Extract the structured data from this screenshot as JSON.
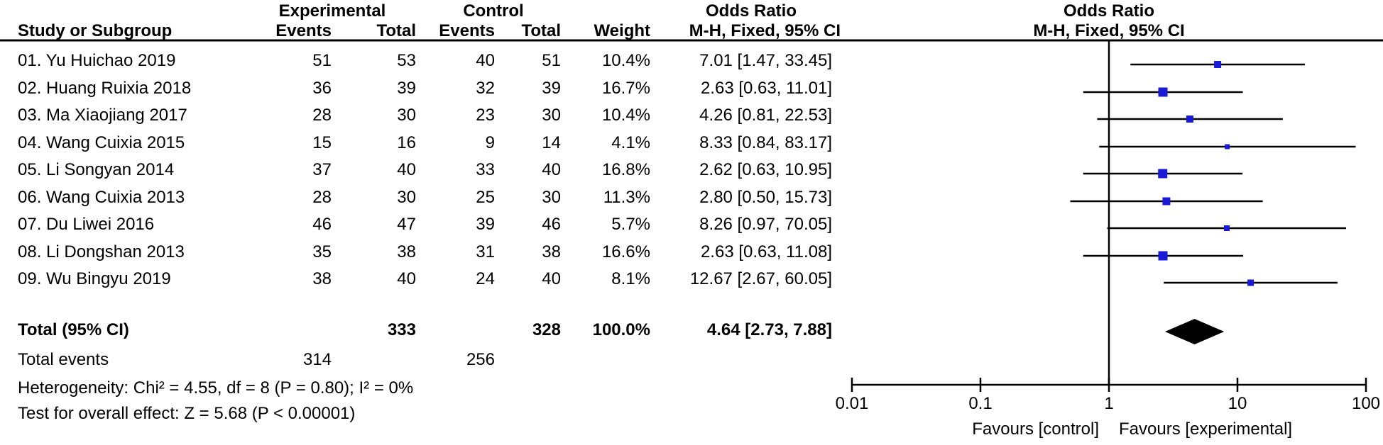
{
  "table": {
    "headers": {
      "study": "Study or Subgroup",
      "experimental": "Experimental",
      "control": "Control",
      "odds_ratio": "Odds Ratio",
      "events": "Events",
      "total": "Total",
      "weight": "Weight",
      "ci_method": "M-H, Fixed, 95% CI"
    },
    "plot_header": {
      "line1": "Odds Ratio",
      "line2": "M-H, Fixed, 95% CI"
    }
  },
  "chart_data": {
    "type": "forest",
    "scale": "log10",
    "effect_measure": "Odds Ratio, M-H, Fixed, 95% CI",
    "axis_ticks": [
      {
        "value": 0.01,
        "label": "0.01"
      },
      {
        "value": 0.1,
        "label": "0.1"
      },
      {
        "value": 1,
        "label": "1"
      },
      {
        "value": 10,
        "label": "10"
      },
      {
        "value": 100,
        "label": "100"
      }
    ],
    "favours_left": "Favours [control]",
    "favours_right": "Favours [experimental]",
    "studies": [
      {
        "label": "01. Yu Huichao 2019",
        "exp_events": "51",
        "exp_total": "53",
        "ctl_events": "40",
        "ctl_total": "51",
        "weight": "10.4%",
        "weight_value": 10.4,
        "or": 7.01,
        "ci_low": 1.47,
        "ci_high": 33.45,
        "ci_text": "7.01 [1.47, 33.45]"
      },
      {
        "label": "02. Huang Ruixia 2018",
        "exp_events": "36",
        "exp_total": "39",
        "ctl_events": "32",
        "ctl_total": "39",
        "weight": "16.7%",
        "weight_value": 16.7,
        "or": 2.63,
        "ci_low": 0.63,
        "ci_high": 11.01,
        "ci_text": "2.63 [0.63, 11.01]"
      },
      {
        "label": "03. Ma Xiaojiang 2017",
        "exp_events": "28",
        "exp_total": "30",
        "ctl_events": "23",
        "ctl_total": "30",
        "weight": "10.4%",
        "weight_value": 10.4,
        "or": 4.26,
        "ci_low": 0.81,
        "ci_high": 22.53,
        "ci_text": "4.26 [0.81, 22.53]"
      },
      {
        "label": "04. Wang Cuixia 2015",
        "exp_events": "15",
        "exp_total": "16",
        "ctl_events": "9",
        "ctl_total": "14",
        "weight": "4.1%",
        "weight_value": 4.1,
        "or": 8.33,
        "ci_low": 0.84,
        "ci_high": 83.17,
        "ci_text": "8.33 [0.84, 83.17]"
      },
      {
        "label": "05. Li Songyan 2014",
        "exp_events": "37",
        "exp_total": "40",
        "ctl_events": "33",
        "ctl_total": "40",
        "weight": "16.8%",
        "weight_value": 16.8,
        "or": 2.62,
        "ci_low": 0.63,
        "ci_high": 10.95,
        "ci_text": "2.62 [0.63, 10.95]"
      },
      {
        "label": "06. Wang Cuixia 2013",
        "exp_events": "28",
        "exp_total": "30",
        "ctl_events": "25",
        "ctl_total": "30",
        "weight": "11.3%",
        "weight_value": 11.3,
        "or": 2.8,
        "ci_low": 0.5,
        "ci_high": 15.73,
        "ci_text": "2.80 [0.50, 15.73]"
      },
      {
        "label": "07. Du Liwei 2016",
        "exp_events": "46",
        "exp_total": "47",
        "ctl_events": "39",
        "ctl_total": "46",
        "weight": "5.7%",
        "weight_value": 5.7,
        "or": 8.26,
        "ci_low": 0.97,
        "ci_high": 70.05,
        "ci_text": "8.26 [0.97, 70.05]"
      },
      {
        "label": "08. Li Dongshan 2013",
        "exp_events": "35",
        "exp_total": "38",
        "ctl_events": "31",
        "ctl_total": "38",
        "weight": "16.6%",
        "weight_value": 16.6,
        "or": 2.63,
        "ci_low": 0.63,
        "ci_high": 11.08,
        "ci_text": "2.63 [0.63, 11.08]"
      },
      {
        "label": "09. Wu Bingyu 2019",
        "exp_events": "38",
        "exp_total": "40",
        "ctl_events": "24",
        "ctl_total": "40",
        "weight": "8.1%",
        "weight_value": 8.1,
        "or": 12.67,
        "ci_low": 2.67,
        "ci_high": 60.05,
        "ci_text": "12.67 [2.67, 60.05]"
      }
    ],
    "total": {
      "label": "Total (95% CI)",
      "exp_total": "333",
      "ctl_total": "328",
      "weight": "100.0%",
      "or": 4.64,
      "ci_low": 2.73,
      "ci_high": 7.88,
      "ci_text": "4.64 [2.73, 7.88]"
    },
    "total_events": {
      "label": "Total events",
      "exp": "314",
      "ctl": "256"
    },
    "heterogeneity": "Heterogeneity: Chi² = 4.55, df = 8 (P = 0.80); I² = 0%",
    "overall_effect": "Test for overall effect: Z = 5.68 (P < 0.00001)"
  },
  "colors": {
    "square": "#1a1ad6",
    "diamond": "#000000",
    "line": "#000000",
    "text": "#000000"
  }
}
